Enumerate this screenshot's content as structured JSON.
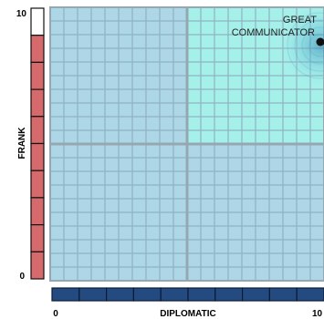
{
  "chart_data": {
    "type": "scatter",
    "x": {
      "label": "DIPLOMATIC",
      "min_label": "0",
      "max_label": "10",
      "range": [
        0,
        10
      ],
      "segments": 10,
      "color": "#234b82"
    },
    "y": {
      "label": "FRANK",
      "min_label": "0",
      "max_label": "10",
      "range": [
        0,
        10
      ],
      "segments": 10,
      "color": "#d6696b",
      "empty_segments": 1
    },
    "quadrants": {
      "highlighted": "top-right",
      "highlight_color": "#a6f0ea",
      "base_color": "#add7e6"
    },
    "grid": true,
    "points": [
      {
        "x": 10,
        "y": 9,
        "label_line1": "GREAT",
        "label_line2": "COMMUNICATOR"
      }
    ]
  }
}
